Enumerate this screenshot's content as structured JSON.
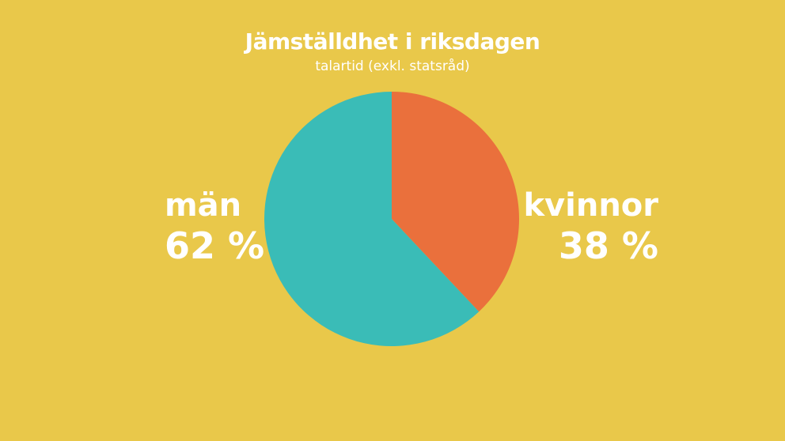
{
  "background": {
    "color": "#e9c84a"
  },
  "chart_data": {
    "type": "pie",
    "title": "Jämställdhet i riksdagen",
    "subtitle": "talartid (exkl. statsråd)",
    "slices": [
      {
        "name": "kvinnor",
        "value": 38,
        "label": "38 %",
        "color": "#ea703c"
      },
      {
        "name": "män",
        "value": 62,
        "label": "62 %",
        "color": "#3abcb7"
      }
    ],
    "start_angle_deg": 0,
    "direction": "clockwise"
  }
}
